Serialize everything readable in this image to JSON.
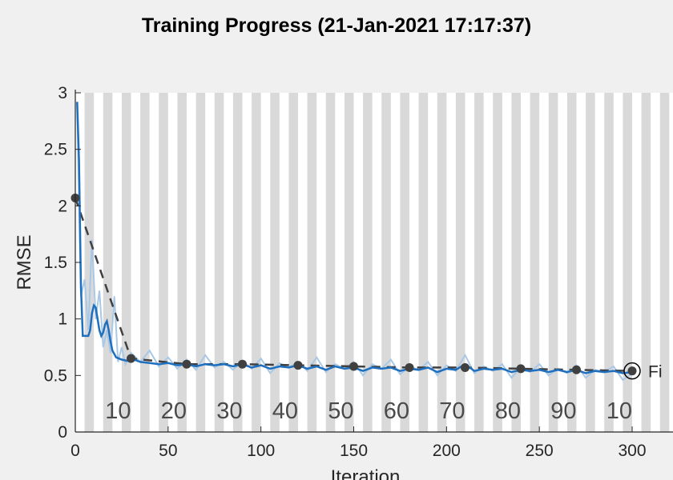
{
  "chart_data": {
    "type": "line",
    "title": "Training Progress (21-Jan-2021 17:17:37)",
    "xlabel": "Iteration",
    "ylabel": "RMSE",
    "xlim": [
      0,
      300
    ],
    "ylim": [
      0,
      3
    ],
    "xticks": [
      0,
      50,
      100,
      150,
      200,
      250,
      300
    ],
    "yticks": [
      0,
      0.5,
      1,
      1.5,
      2,
      2.5,
      3
    ],
    "epoch_labels": [
      "10",
      "20",
      "30",
      "40",
      "50",
      "60",
      "70",
      "80",
      "90",
      "10"
    ],
    "final_label": "Fi",
    "series": [
      {
        "role": "raw",
        "color": "#a9c8e6",
        "x": [
          1,
          3,
          5,
          7,
          9,
          11,
          13,
          15,
          17,
          19,
          21,
          23,
          25,
          27,
          30,
          35,
          40,
          45,
          50,
          55,
          60,
          65,
          70,
          75,
          80,
          85,
          90,
          95,
          100,
          105,
          110,
          115,
          120,
          125,
          130,
          135,
          140,
          145,
          150,
          155,
          160,
          165,
          170,
          175,
          180,
          185,
          190,
          195,
          200,
          205,
          210,
          215,
          220,
          225,
          230,
          235,
          240,
          245,
          250,
          255,
          260,
          265,
          270,
          275,
          280,
          285,
          290,
          295,
          300
        ],
        "y": [
          2.9,
          1.2,
          1.35,
          0.9,
          1.7,
          1.0,
          1.25,
          0.75,
          0.9,
          0.7,
          1.2,
          0.62,
          0.75,
          0.6,
          0.7,
          0.62,
          0.72,
          0.58,
          0.66,
          0.56,
          0.64,
          0.55,
          0.68,
          0.57,
          0.62,
          0.55,
          0.63,
          0.56,
          0.65,
          0.52,
          0.61,
          0.57,
          0.62,
          0.54,
          0.66,
          0.53,
          0.6,
          0.56,
          0.62,
          0.5,
          0.6,
          0.56,
          0.64,
          0.51,
          0.58,
          0.55,
          0.62,
          0.5,
          0.59,
          0.54,
          0.68,
          0.52,
          0.58,
          0.54,
          0.6,
          0.48,
          0.57,
          0.53,
          0.6,
          0.5,
          0.56,
          0.52,
          0.59,
          0.48,
          0.55,
          0.53,
          0.58,
          0.46,
          0.52
        ]
      },
      {
        "role": "smoothed",
        "color": "#1f6fbf",
        "x": [
          1,
          2,
          3,
          4,
          5,
          6,
          7,
          8,
          9,
          10,
          11,
          12,
          13,
          14,
          15,
          16,
          17,
          18,
          19,
          20,
          22,
          25,
          28,
          30,
          35,
          40,
          45,
          50,
          55,
          60,
          65,
          70,
          75,
          80,
          85,
          90,
          95,
          100,
          105,
          110,
          115,
          120,
          125,
          130,
          135,
          140,
          145,
          150,
          155,
          160,
          165,
          170,
          175,
          180,
          185,
          190,
          195,
          200,
          205,
          210,
          215,
          220,
          225,
          230,
          235,
          240,
          245,
          250,
          255,
          260,
          265,
          270,
          275,
          280,
          285,
          290,
          295,
          300
        ],
        "y": [
          2.92,
          2.4,
          1.3,
          0.85,
          0.85,
          0.85,
          0.85,
          0.9,
          1.05,
          1.12,
          1.1,
          1.0,
          0.9,
          0.85,
          0.88,
          0.95,
          0.98,
          0.9,
          0.8,
          0.72,
          0.66,
          0.64,
          0.63,
          0.65,
          0.62,
          0.61,
          0.6,
          0.61,
          0.59,
          0.6,
          0.58,
          0.6,
          0.59,
          0.6,
          0.58,
          0.6,
          0.57,
          0.59,
          0.56,
          0.58,
          0.57,
          0.59,
          0.56,
          0.58,
          0.55,
          0.58,
          0.56,
          0.57,
          0.54,
          0.57,
          0.56,
          0.57,
          0.54,
          0.56,
          0.55,
          0.57,
          0.53,
          0.56,
          0.55,
          0.6,
          0.54,
          0.56,
          0.55,
          0.56,
          0.53,
          0.55,
          0.54,
          0.55,
          0.53,
          0.55,
          0.53,
          0.55,
          0.52,
          0.54,
          0.53,
          0.54,
          0.52,
          0.53
        ]
      },
      {
        "role": "validation",
        "color": "#404040",
        "x": [
          0,
          30,
          60,
          90,
          120,
          150,
          180,
          210,
          240,
          270,
          300
        ],
        "y": [
          2.07,
          0.65,
          0.6,
          0.6,
          0.59,
          0.58,
          0.57,
          0.57,
          0.56,
          0.55,
          0.54
        ]
      }
    ]
  }
}
